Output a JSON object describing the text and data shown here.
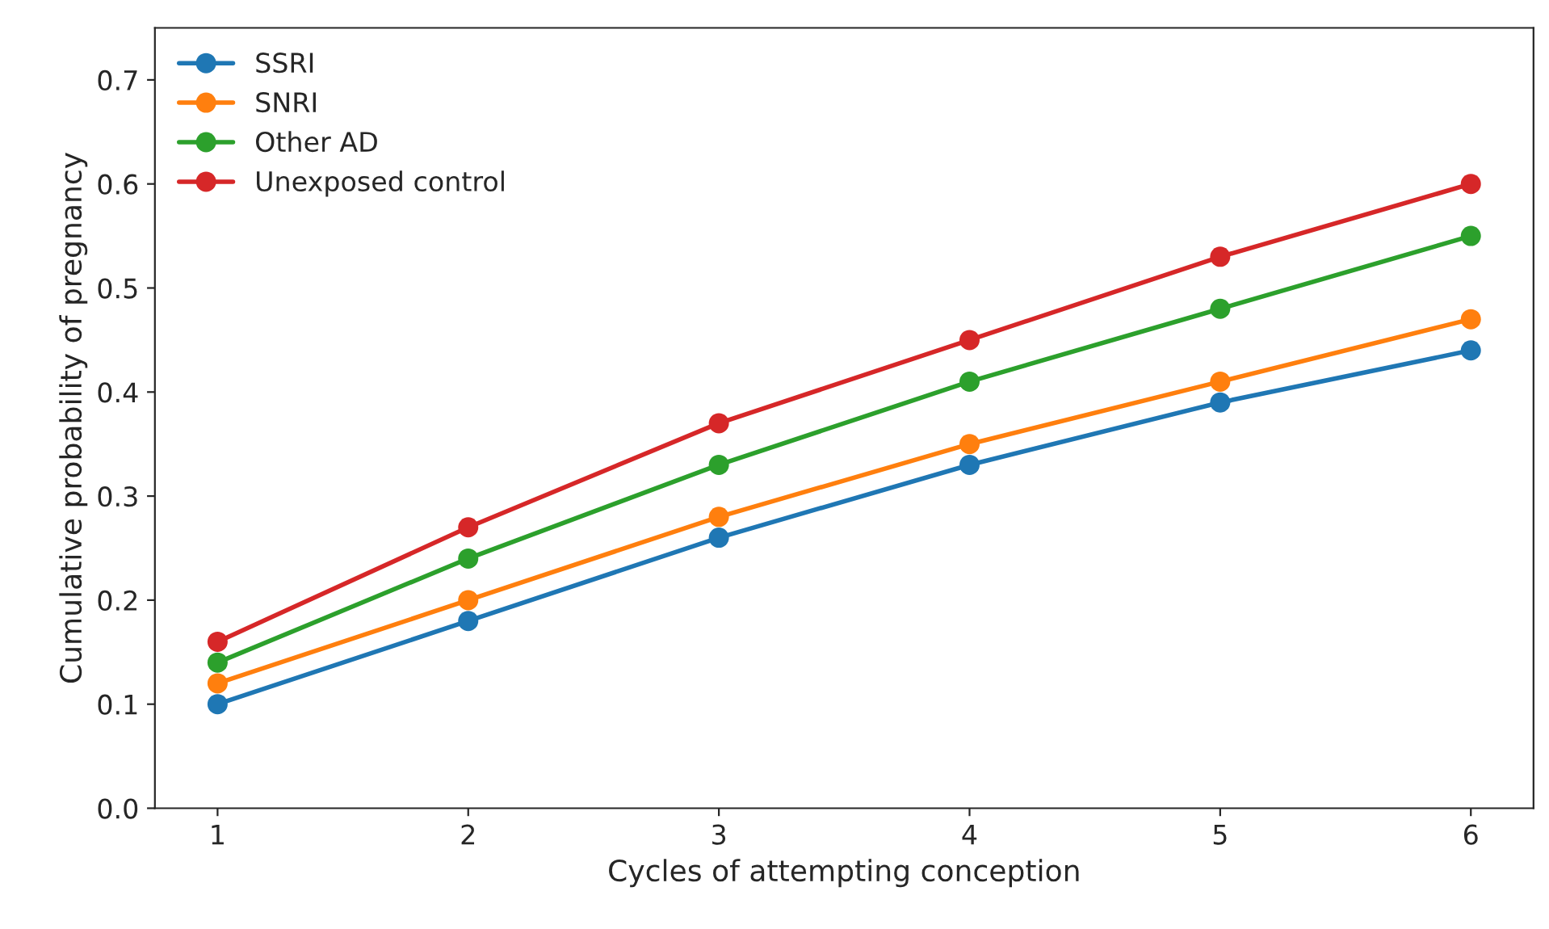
{
  "chart_data": {
    "type": "line",
    "xlabel": "Cycles of attempting conception",
    "ylabel": "Cumulative probability of pregnancy",
    "x": [
      1,
      2,
      3,
      4,
      5,
      6
    ],
    "series": [
      {
        "name": "SSRI",
        "color": "#1f77b4",
        "values": [
          0.1,
          0.18,
          0.26,
          0.33,
          0.39,
          0.44
        ]
      },
      {
        "name": "SNRI",
        "color": "#ff7f0e",
        "values": [
          0.12,
          0.2,
          0.28,
          0.35,
          0.41,
          0.47
        ]
      },
      {
        "name": "Other AD",
        "color": "#2ca02c",
        "values": [
          0.14,
          0.24,
          0.33,
          0.41,
          0.48,
          0.55
        ]
      },
      {
        "name": "Unexposed control",
        "color": "#d62728",
        "values": [
          0.16,
          0.27,
          0.37,
          0.45,
          0.53,
          0.6
        ]
      }
    ],
    "xlim": [
      0.75,
      6.25
    ],
    "xticks": [
      1,
      2,
      3,
      4,
      5,
      6
    ],
    "ylim": [
      0,
      0.75
    ],
    "yticks": [
      {
        "value": 0,
        "label": "0.0"
      },
      0.1,
      0.2,
      0.3,
      0.4,
      0.5,
      0.6,
      0.7
    ],
    "grid": false,
    "legend": "top left",
    "marker": "circle",
    "line_style": "solid"
  }
}
